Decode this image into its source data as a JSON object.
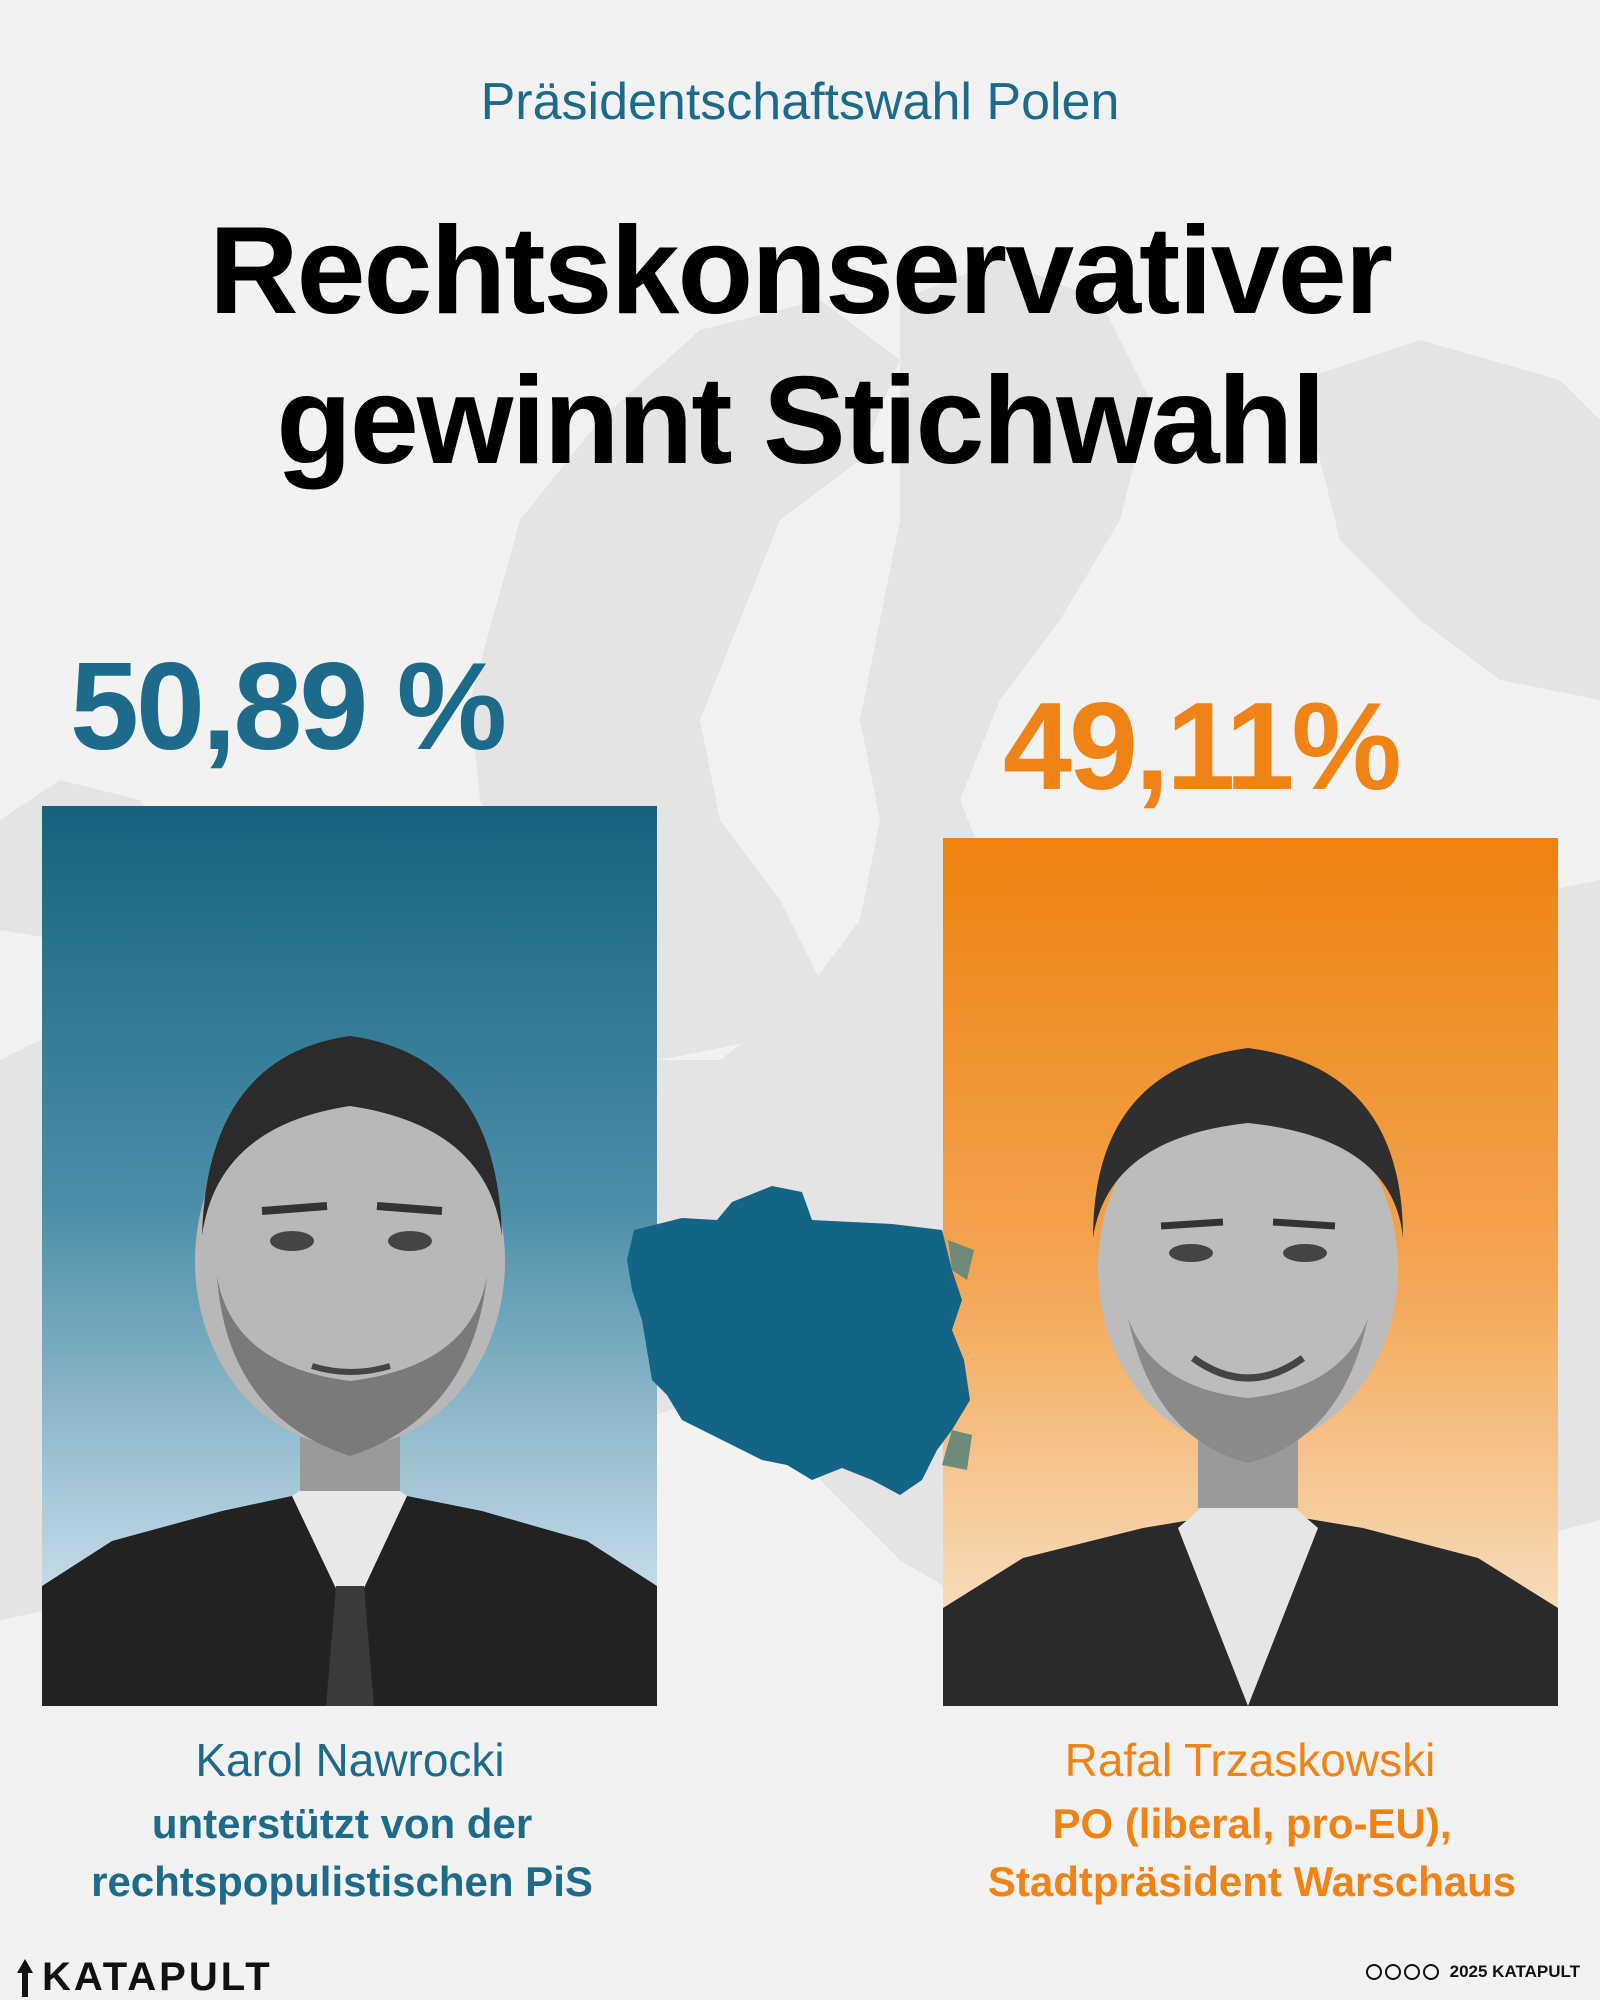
{
  "header": {
    "kicker": "Präsidentschaftswahl Polen",
    "headline_line1": "Rechtskonservativer",
    "headline_line2": "gewinnt Stichwahl"
  },
  "candidates": [
    {
      "percentage": "50,89 %",
      "name": "Karol Nawrocki",
      "description_line1": "unterstützt von der",
      "description_line2": "rechtspopulistischen PiS",
      "color": "#1d6a8a"
    },
    {
      "percentage": "49,11%",
      "name": "Rafal Trzaskowski",
      "description_line1": "PO (liberal, pro-EU),",
      "description_line2": "Stadtpräsident Warschaus",
      "color": "#f08316"
    }
  ],
  "map": {
    "highlight_color": "#146585",
    "land_color": "#e6e6e6"
  },
  "footer": {
    "brand": "KATAPULT",
    "license": "2025 KATAPULT"
  }
}
